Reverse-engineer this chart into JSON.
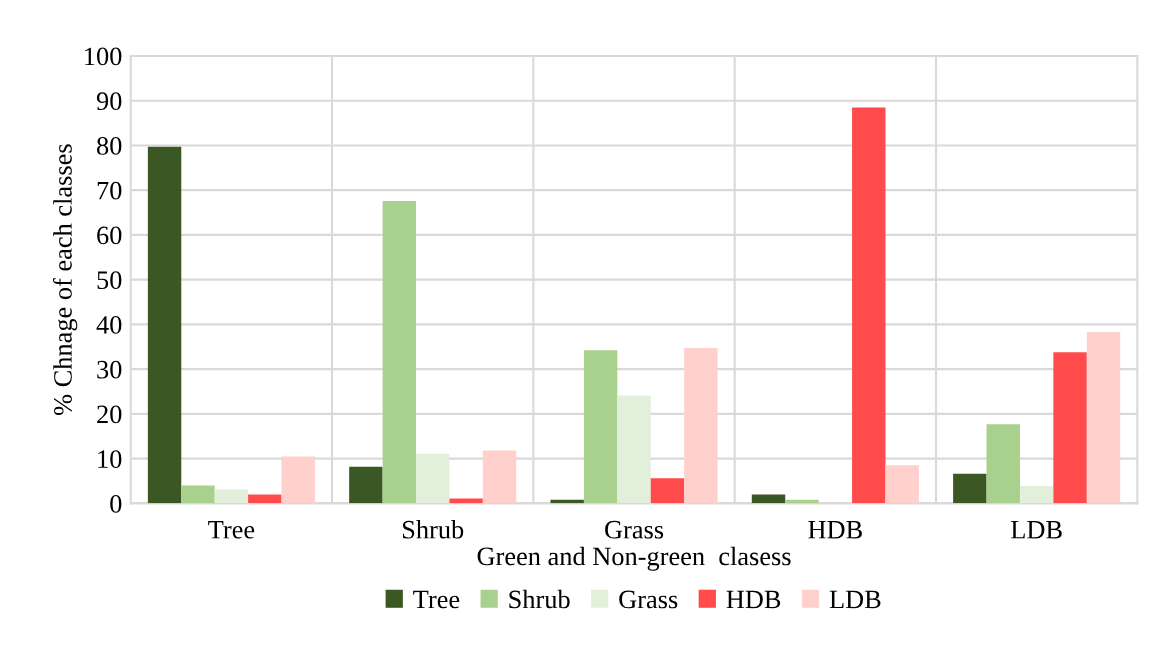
{
  "chart_data": {
    "type": "bar",
    "xlabel": "Green and Non-green  clasess",
    "ylabel": "% Chnage of each classes",
    "categories": [
      "Tree",
      "Shrub",
      "Grass",
      "HDB",
      "LDB"
    ],
    "series": [
      {
        "name": "Tree",
        "color": "#3b5723",
        "values": [
          79.7,
          8.2,
          0.8,
          2.0,
          6.6
        ]
      },
      {
        "name": "Shrub",
        "color": "#a9d18e",
        "values": [
          4.0,
          67.6,
          34.2,
          0.8,
          17.7
        ]
      },
      {
        "name": "Grass",
        "color": "#e2efda",
        "values": [
          3.1,
          11.1,
          24.1,
          0,
          3.9
        ]
      },
      {
        "name": "HDB",
        "color": "#ff4b4b",
        "values": [
          2.0,
          1.1,
          5.6,
          88.5,
          33.8
        ]
      },
      {
        "name": "LDB",
        "color": "#ffd0cc",
        "values": [
          10.5,
          11.8,
          34.7,
          8.5,
          38.3
        ]
      }
    ],
    "ylim": [
      0,
      100
    ],
    "yticks": [
      0,
      10,
      20,
      30,
      40,
      50,
      60,
      70,
      80,
      90,
      100
    ],
    "grid": true,
    "legend": "bottom"
  }
}
